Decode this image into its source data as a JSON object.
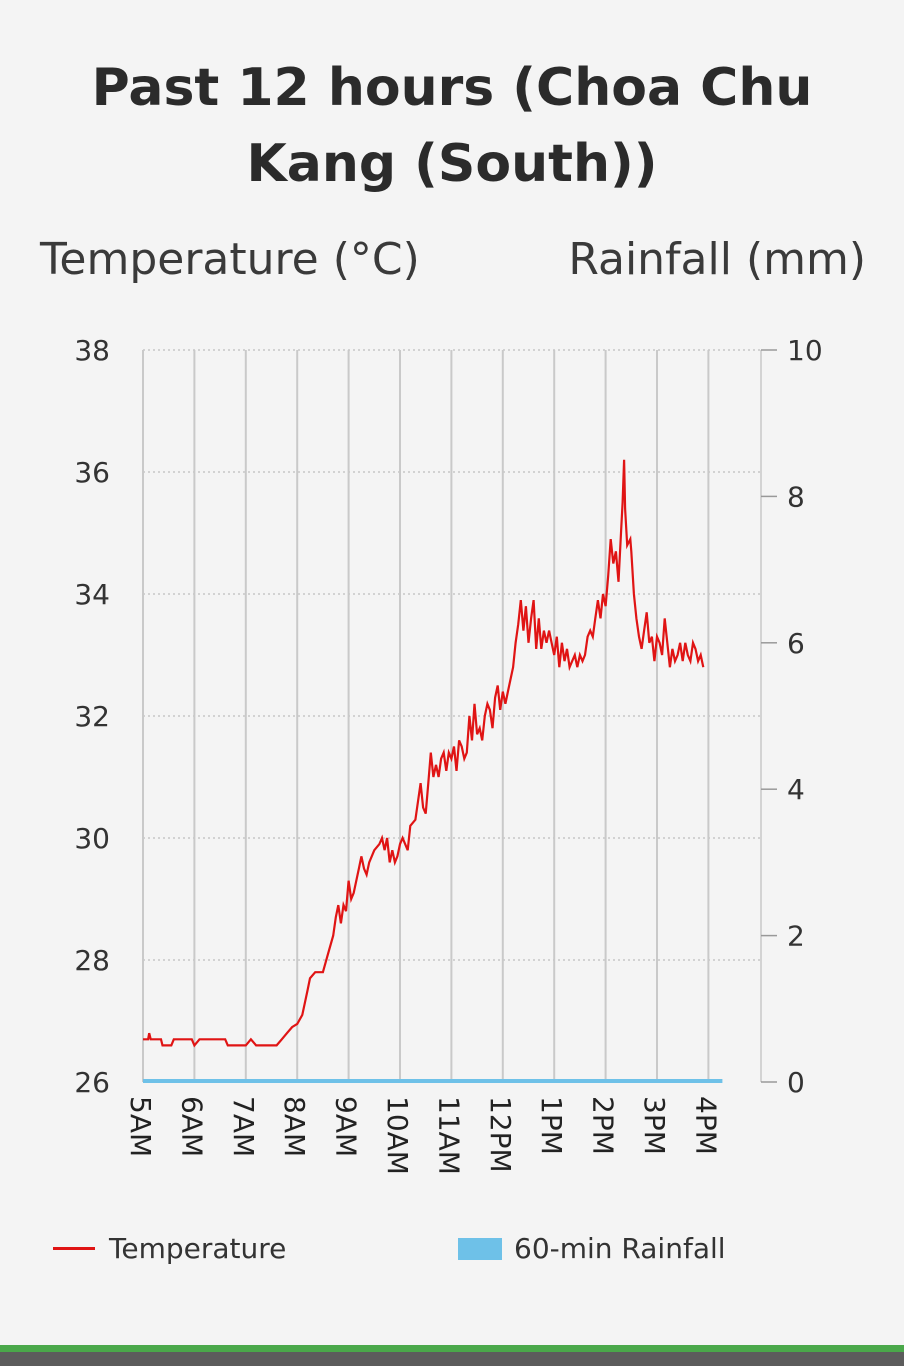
{
  "chart_data": {
    "type": "line",
    "title": "Past 12 hours (Choa Chu Kang (South))",
    "ylabel": "Temperature (°C)",
    "y2label": "Rainfall (mm)",
    "ylim": [
      26,
      38
    ],
    "y2lim": [
      0,
      10
    ],
    "yticks": [
      "26",
      "28",
      "30",
      "32",
      "34",
      "36",
      "38"
    ],
    "y2ticks": [
      "0",
      "2",
      "4",
      "6",
      "8",
      "10"
    ],
    "xticks": [
      "5AM",
      "6AM",
      "7AM",
      "8AM",
      "9AM",
      "10AM",
      "11AM",
      "12PM",
      "1PM",
      "2PM",
      "3PM",
      "4PM"
    ],
    "x_unit": "hours since 5AM",
    "series": [
      {
        "name": "Temperature",
        "color": "#e01414",
        "type": "line",
        "points": [
          [
            0.0,
            26.7
          ],
          [
            0.1,
            26.7
          ],
          [
            0.12,
            26.8
          ],
          [
            0.15,
            26.7
          ],
          [
            0.35,
            26.7
          ],
          [
            0.38,
            26.6
          ],
          [
            0.55,
            26.6
          ],
          [
            0.6,
            26.7
          ],
          [
            0.95,
            26.7
          ],
          [
            1.0,
            26.6
          ],
          [
            1.1,
            26.7
          ],
          [
            1.6,
            26.7
          ],
          [
            1.65,
            26.6
          ],
          [
            2.0,
            26.6
          ],
          [
            2.1,
            26.7
          ],
          [
            2.2,
            26.6
          ],
          [
            2.6,
            26.6
          ],
          [
            2.7,
            26.7
          ],
          [
            2.8,
            26.8
          ],
          [
            2.9,
            26.9
          ],
          [
            3.0,
            26.95
          ],
          [
            3.1,
            27.1
          ],
          [
            3.15,
            27.3
          ],
          [
            3.2,
            27.5
          ],
          [
            3.25,
            27.7
          ],
          [
            3.35,
            27.8
          ],
          [
            3.5,
            27.8
          ],
          [
            3.6,
            28.1
          ],
          [
            3.7,
            28.4
          ],
          [
            3.75,
            28.7
          ],
          [
            3.8,
            28.9
          ],
          [
            3.85,
            28.6
          ],
          [
            3.9,
            28.9
          ],
          [
            3.95,
            28.8
          ],
          [
            4.0,
            29.3
          ],
          [
            4.05,
            29.0
          ],
          [
            4.1,
            29.1
          ],
          [
            4.2,
            29.5
          ],
          [
            4.25,
            29.7
          ],
          [
            4.3,
            29.5
          ],
          [
            4.35,
            29.4
          ],
          [
            4.4,
            29.6
          ],
          [
            4.5,
            29.8
          ],
          [
            4.6,
            29.9
          ],
          [
            4.65,
            30.0
          ],
          [
            4.7,
            29.8
          ],
          [
            4.75,
            30.0
          ],
          [
            4.8,
            29.6
          ],
          [
            4.85,
            29.8
          ],
          [
            4.9,
            29.6
          ],
          [
            4.95,
            29.7
          ],
          [
            5.0,
            29.9
          ],
          [
            5.05,
            30.0
          ],
          [
            5.15,
            29.8
          ],
          [
            5.2,
            30.2
          ],
          [
            5.3,
            30.3
          ],
          [
            5.35,
            30.6
          ],
          [
            5.4,
            30.9
          ],
          [
            5.45,
            30.5
          ],
          [
            5.5,
            30.4
          ],
          [
            5.55,
            30.9
          ],
          [
            5.6,
            31.4
          ],
          [
            5.65,
            31.0
          ],
          [
            5.7,
            31.2
          ],
          [
            5.75,
            31.0
          ],
          [
            5.8,
            31.3
          ],
          [
            5.85,
            31.4
          ],
          [
            5.9,
            31.1
          ],
          [
            5.95,
            31.4
          ],
          [
            6.0,
            31.3
          ],
          [
            6.05,
            31.5
          ],
          [
            6.1,
            31.1
          ],
          [
            6.15,
            31.6
          ],
          [
            6.2,
            31.5
          ],
          [
            6.25,
            31.3
          ],
          [
            6.3,
            31.4
          ],
          [
            6.35,
            32.0
          ],
          [
            6.4,
            31.6
          ],
          [
            6.45,
            32.2
          ],
          [
            6.5,
            31.7
          ],
          [
            6.55,
            31.8
          ],
          [
            6.6,
            31.6
          ],
          [
            6.65,
            32.0
          ],
          [
            6.7,
            32.2
          ],
          [
            6.75,
            32.1
          ],
          [
            6.8,
            31.8
          ],
          [
            6.85,
            32.3
          ],
          [
            6.9,
            32.5
          ],
          [
            6.95,
            32.1
          ],
          [
            7.0,
            32.4
          ],
          [
            7.05,
            32.2
          ],
          [
            7.1,
            32.4
          ],
          [
            7.15,
            32.6
          ],
          [
            7.2,
            32.8
          ],
          [
            7.25,
            33.2
          ],
          [
            7.3,
            33.5
          ],
          [
            7.35,
            33.9
          ],
          [
            7.4,
            33.4
          ],
          [
            7.45,
            33.8
          ],
          [
            7.5,
            33.2
          ],
          [
            7.55,
            33.6
          ],
          [
            7.6,
            33.9
          ],
          [
            7.65,
            33.1
          ],
          [
            7.7,
            33.6
          ],
          [
            7.75,
            33.1
          ],
          [
            7.8,
            33.4
          ],
          [
            7.85,
            33.2
          ],
          [
            7.9,
            33.4
          ],
          [
            7.95,
            33.2
          ],
          [
            8.0,
            33.0
          ],
          [
            8.05,
            33.3
          ],
          [
            8.1,
            32.8
          ],
          [
            8.15,
            33.2
          ],
          [
            8.2,
            32.9
          ],
          [
            8.25,
            33.1
          ],
          [
            8.3,
            32.8
          ],
          [
            8.35,
            32.9
          ],
          [
            8.4,
            33.0
          ],
          [
            8.45,
            32.8
          ],
          [
            8.5,
            33.0
          ],
          [
            8.55,
            32.9
          ],
          [
            8.6,
            33.0
          ],
          [
            8.65,
            33.3
          ],
          [
            8.7,
            33.4
          ],
          [
            8.75,
            33.3
          ],
          [
            8.8,
            33.6
          ],
          [
            8.85,
            33.9
          ],
          [
            8.9,
            33.6
          ],
          [
            8.95,
            34.0
          ],
          [
            9.0,
            33.8
          ],
          [
            9.05,
            34.3
          ],
          [
            9.1,
            34.9
          ],
          [
            9.15,
            34.5
          ],
          [
            9.2,
            34.7
          ],
          [
            9.25,
            34.2
          ],
          [
            9.3,
            35.0
          ],
          [
            9.33,
            35.5
          ],
          [
            9.36,
            36.2
          ],
          [
            9.38,
            35.4
          ],
          [
            9.42,
            34.8
          ],
          [
            9.48,
            34.9
          ],
          [
            9.5,
            34.7
          ],
          [
            9.55,
            34.0
          ],
          [
            9.6,
            33.6
          ],
          [
            9.65,
            33.3
          ],
          [
            9.7,
            33.1
          ],
          [
            9.75,
            33.4
          ],
          [
            9.8,
            33.7
          ],
          [
            9.85,
            33.2
          ],
          [
            9.9,
            33.3
          ],
          [
            9.95,
            32.9
          ],
          [
            10.0,
            33.3
          ],
          [
            10.05,
            33.2
          ],
          [
            10.1,
            33.0
          ],
          [
            10.15,
            33.6
          ],
          [
            10.2,
            33.2
          ],
          [
            10.25,
            32.8
          ],
          [
            10.3,
            33.1
          ],
          [
            10.35,
            32.9
          ],
          [
            10.4,
            33.0
          ],
          [
            10.45,
            33.2
          ],
          [
            10.5,
            32.9
          ],
          [
            10.55,
            33.2
          ],
          [
            10.6,
            33.0
          ],
          [
            10.65,
            32.9
          ],
          [
            10.7,
            33.2
          ],
          [
            10.75,
            33.1
          ],
          [
            10.8,
            32.9
          ],
          [
            10.85,
            33.0
          ],
          [
            10.9,
            32.8
          ]
        ]
      },
      {
        "name": "60-min Rainfall",
        "color": "#6ec1e8",
        "type": "bar",
        "axis": "right",
        "x_range": [
          0,
          11
        ],
        "value": 0
      }
    ],
    "legend": [
      {
        "label": "Temperature",
        "kind": "line"
      },
      {
        "label": "60-min Rainfall",
        "kind": "box"
      }
    ],
    "legend_position": "bottom",
    "grid": true
  }
}
